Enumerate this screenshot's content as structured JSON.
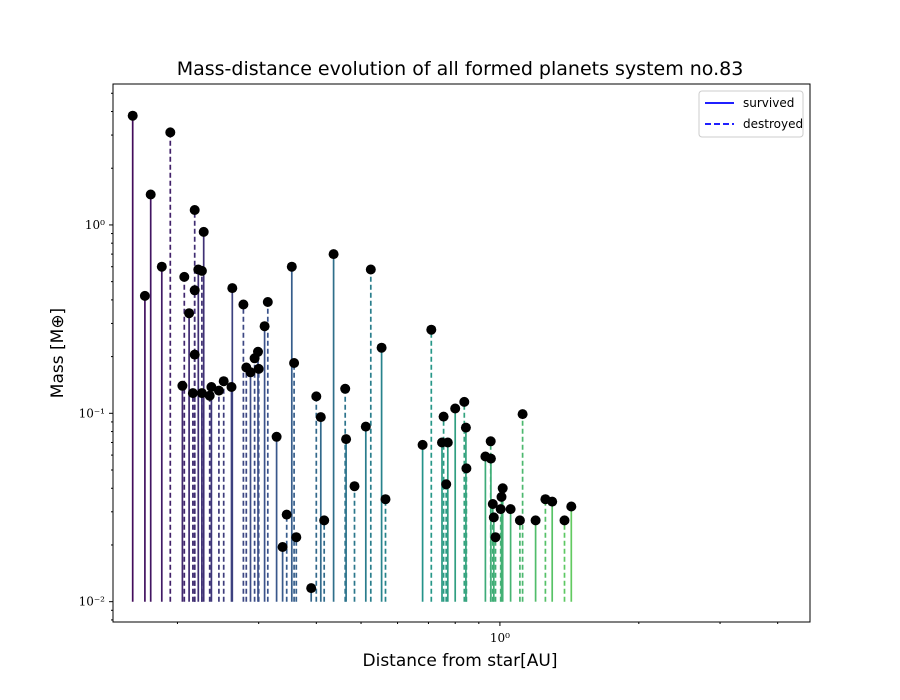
{
  "chart_data": {
    "type": "line",
    "title": "Mass-distance evolution of all formed planets system no.83",
    "xlabel": "Distance from star[AU]",
    "ylabel": "Mass [M⊕]",
    "xscale": "log",
    "yscale": "log",
    "xlim": [
      0.145,
      4.7
    ],
    "ylim": [
      0.0078,
      5.6
    ],
    "x_ticks": [
      {
        "value": 1,
        "label": "10⁰"
      }
    ],
    "y_ticks": [
      {
        "value": 0.01,
        "label": "10⁻²"
      },
      {
        "value": 0.1,
        "label": "10⁻¹"
      },
      {
        "value": 1,
        "label": "10⁰"
      }
    ],
    "grid": false,
    "legend_position": "top-right",
    "legend": [
      {
        "label": "survived",
        "style": "solid",
        "color": "#0000ff"
      },
      {
        "label": "destroyed",
        "style": "dashed",
        "color": "#0000ff"
      }
    ],
    "colormap": [
      "#440154",
      "#3b528b",
      "#21918c",
      "#5ec962",
      "#fde725"
    ],
    "final_planets": [
      [
        0.16,
        3.8
      ],
      [
        0.193,
        3.1
      ],
      [
        0.175,
        1.45
      ],
      [
        0.218,
        1.2
      ],
      [
        0.185,
        0.6
      ],
      [
        0.207,
        0.53
      ],
      [
        0.222,
        0.58
      ],
      [
        0.226,
        0.57
      ],
      [
        0.17,
        0.42
      ],
      [
        0.218,
        0.45
      ],
      [
        0.212,
        0.34
      ],
      [
        0.218,
        0.205
      ],
      [
        0.205,
        0.14
      ],
      [
        0.216,
        0.128
      ],
      [
        0.226,
        0.128
      ],
      [
        0.235,
        0.124
      ],
      [
        0.237,
        0.138
      ],
      [
        0.246,
        0.132
      ],
      [
        0.228,
        0.918
      ],
      [
        0.252,
        0.148
      ],
      [
        0.262,
        0.138
      ],
      [
        0.282,
        0.175
      ],
      [
        0.288,
        0.165
      ],
      [
        0.278,
        0.378
      ],
      [
        0.309,
        0.29
      ],
      [
        0.294,
        0.196
      ],
      [
        0.299,
        0.212
      ],
      [
        0.314,
        0.39
      ],
      [
        0.263,
        0.462
      ],
      [
        0.3,
        0.172
      ],
      [
        0.354,
        0.6
      ],
      [
        0.358,
        0.185
      ],
      [
        0.328,
        0.075
      ],
      [
        0.345,
        0.029
      ],
      [
        0.338,
        0.0195
      ],
      [
        0.362,
        0.022
      ],
      [
        0.39,
        0.0118
      ],
      [
        0.4,
        0.123
      ],
      [
        0.409,
        0.0955
      ],
      [
        0.416,
        0.027
      ],
      [
        0.436,
        0.7
      ],
      [
        0.462,
        0.135
      ],
      [
        0.464,
        0.073
      ],
      [
        0.484,
        0.041
      ],
      [
        0.512,
        0.085
      ],
      [
        0.525,
        0.58
      ],
      [
        0.554,
        0.223
      ],
      [
        0.565,
        0.035
      ],
      [
        0.68,
        0.068
      ],
      [
        0.71,
        0.278
      ],
      [
        0.749,
        0.07
      ],
      [
        0.755,
        0.096
      ],
      [
        0.771,
        0.07
      ],
      [
        0.765,
        0.042
      ],
      [
        0.8,
        0.106
      ],
      [
        0.837,
        0.115
      ],
      [
        0.844,
        0.084
      ],
      [
        0.846,
        0.051
      ],
      [
        0.93,
        0.059
      ],
      [
        0.955,
        0.071
      ],
      [
        0.956,
        0.0575
      ],
      [
        0.965,
        0.033
      ],
      [
        0.97,
        0.028
      ],
      [
        1.004,
        0.031
      ],
      [
        1.008,
        0.036
      ],
      [
        0.978,
        0.022
      ],
      [
        1.014,
        0.04
      ],
      [
        1.12,
        0.099
      ],
      [
        1.055,
        0.031
      ],
      [
        1.105,
        0.027
      ],
      [
        1.195,
        0.027
      ],
      [
        1.255,
        0.035
      ],
      [
        1.298,
        0.034
      ],
      [
        1.38,
        0.027
      ],
      [
        1.428,
        0.032
      ]
    ]
  }
}
